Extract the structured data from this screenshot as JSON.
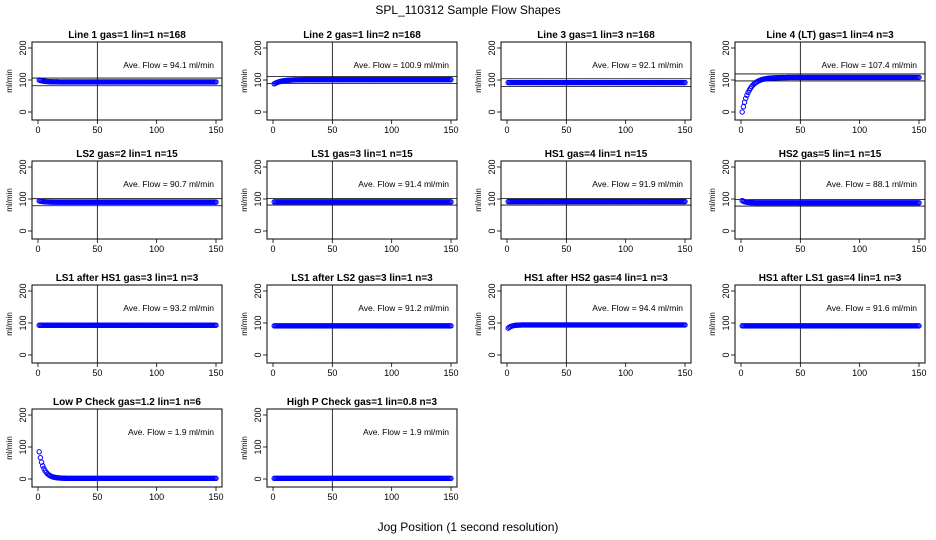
{
  "figure": {
    "title": "SPL_110312  Sample Flow Shapes",
    "xlabel": "Jog Position (1 second resolution)"
  },
  "chart_data": [
    {
      "type": "scatter",
      "title": "Line 1 gas=1 lin=1 n=168",
      "ylabel": "ml/min",
      "xlim": [
        0,
        150
      ],
      "ylim": [
        0,
        200
      ],
      "xticks": [
        0,
        50,
        100,
        150
      ],
      "yticks": [
        0,
        100,
        200
      ],
      "vline": 50,
      "hlines": [
        82,
        106
      ],
      "annotation": "Ave. Flow =  94.1  ml/min",
      "curve": {
        "shape": "decay",
        "start": 100,
        "end": 94,
        "tau": 4
      }
    },
    {
      "type": "scatter",
      "title": "Line 2 gas=1 lin=2 n=168",
      "ylabel": "ml/min",
      "xlim": [
        0,
        150
      ],
      "ylim": [
        0,
        200
      ],
      "xticks": [
        0,
        50,
        100,
        150
      ],
      "yticks": [
        0,
        100,
        200
      ],
      "vline": 50,
      "hlines": [
        89,
        111
      ],
      "annotation": "Ave. Flow =  100.9  ml/min",
      "curve": {
        "shape": "rise",
        "start": 88,
        "end": 101,
        "tau": 6
      }
    },
    {
      "type": "scatter",
      "title": "Line 3 gas=1 lin=3 n=168",
      "ylabel": "ml/min",
      "xlim": [
        0,
        150
      ],
      "ylim": [
        0,
        200
      ],
      "xticks": [
        0,
        50,
        100,
        150
      ],
      "yticks": [
        0,
        100,
        200
      ],
      "vline": 50,
      "hlines": [
        80,
        104
      ],
      "annotation": "Ave. Flow =  92.1  ml/min",
      "curve": {
        "shape": "flat",
        "start": 92,
        "end": 92,
        "tau": 1
      }
    },
    {
      "type": "scatter",
      "title": "Line 4 (LT) gas=1 lin=4 n=3",
      "ylabel": "ml/min",
      "xlim": [
        0,
        150
      ],
      "ylim": [
        0,
        200
      ],
      "xticks": [
        0,
        50,
        100,
        150
      ],
      "yticks": [
        0,
        100,
        200
      ],
      "vline": 50,
      "hlines": [
        97,
        119
      ],
      "annotation": "Ave. Flow =  107.4  ml/min",
      "curve": {
        "shape": "rise",
        "start": 0,
        "end": 108,
        "tau": 6
      }
    },
    {
      "type": "scatter",
      "title": "LS2 gas=2 lin=1 n=15",
      "ylabel": "ml/min",
      "xlim": [
        0,
        150
      ],
      "ylim": [
        0,
        200
      ],
      "xticks": [
        0,
        50,
        100,
        150
      ],
      "yticks": [
        0,
        100,
        200
      ],
      "vline": 50,
      "hlines": [
        79,
        101
      ],
      "annotation": "Ave. Flow =  90.7  ml/min",
      "curve": {
        "shape": "decay",
        "start": 94,
        "end": 90,
        "tau": 4
      }
    },
    {
      "type": "scatter",
      "title": "LS1 gas=3 lin=1 n=15",
      "ylabel": "ml/min",
      "xlim": [
        0,
        150
      ],
      "ylim": [
        0,
        200
      ],
      "xticks": [
        0,
        50,
        100,
        150
      ],
      "yticks": [
        0,
        100,
        200
      ],
      "vline": 50,
      "hlines": [
        81,
        102
      ],
      "annotation": "Ave. Flow =  91.4  ml/min",
      "curve": {
        "shape": "flat",
        "start": 91,
        "end": 91,
        "tau": 1
      }
    },
    {
      "type": "scatter",
      "title": "HS1 gas=4 lin=1 n=15",
      "ylabel": "ml/min",
      "xlim": [
        0,
        150
      ],
      "ylim": [
        0,
        200
      ],
      "xticks": [
        0,
        50,
        100,
        150
      ],
      "yticks": [
        0,
        100,
        200
      ],
      "vline": 50,
      "hlines": [
        81,
        102
      ],
      "annotation": "Ave. Flow =  91.9  ml/min",
      "curve": {
        "shape": "flat",
        "start": 92,
        "end": 92,
        "tau": 1
      }
    },
    {
      "type": "scatter",
      "title": "HS2 gas=5 lin=1 n=15",
      "ylabel": "ml/min",
      "xlim": [
        0,
        150
      ],
      "ylim": [
        0,
        200
      ],
      "xticks": [
        0,
        50,
        100,
        150
      ],
      "yticks": [
        0,
        100,
        200
      ],
      "vline": 50,
      "hlines": [
        78,
        98
      ],
      "annotation": "Ave. Flow =  88.1  ml/min",
      "curve": {
        "shape": "decay",
        "start": 95,
        "end": 88,
        "tau": 3
      }
    },
    {
      "type": "scatter",
      "title": "LS1 after HS1 gas=3 lin=1 n=3",
      "ylabel": "ml/min",
      "xlim": [
        0,
        150
      ],
      "ylim": [
        0,
        200
      ],
      "xticks": [
        0,
        50,
        100,
        150
      ],
      "yticks": [
        0,
        100,
        200
      ],
      "vline": 50,
      "hlines": [],
      "annotation": "Ave. Flow =  93.2  ml/min",
      "curve": {
        "shape": "flat",
        "start": 93,
        "end": 93,
        "tau": 1
      }
    },
    {
      "type": "scatter",
      "title": "LS1 after LS2 gas=3 lin=1 n=3",
      "ylabel": "ml/min",
      "xlim": [
        0,
        150
      ],
      "ylim": [
        0,
        200
      ],
      "xticks": [
        0,
        50,
        100,
        150
      ],
      "yticks": [
        0,
        100,
        200
      ],
      "vline": 50,
      "hlines": [],
      "annotation": "Ave. Flow =  91.2  ml/min",
      "curve": {
        "shape": "flat",
        "start": 91,
        "end": 91,
        "tau": 1
      }
    },
    {
      "type": "scatter",
      "title": "HS1 after HS2 gas=4 lin=1 n=3",
      "ylabel": "ml/min",
      "xlim": [
        0,
        150
      ],
      "ylim": [
        0,
        200
      ],
      "xticks": [
        0,
        50,
        100,
        150
      ],
      "yticks": [
        0,
        100,
        200
      ],
      "vline": 50,
      "hlines": [],
      "annotation": "Ave. Flow =  94.4  ml/min",
      "curve": {
        "shape": "rise",
        "start": 84,
        "end": 94,
        "tau": 3
      }
    },
    {
      "type": "scatter",
      "title": "HS1 after LS1 gas=4 lin=1 n=3",
      "ylabel": "ml/min",
      "xlim": [
        0,
        150
      ],
      "ylim": [
        0,
        200
      ],
      "xticks": [
        0,
        50,
        100,
        150
      ],
      "yticks": [
        0,
        100,
        200
      ],
      "vline": 50,
      "hlines": [],
      "annotation": "Ave. Flow =  91.6  ml/min",
      "curve": {
        "shape": "flat",
        "start": 91,
        "end": 91,
        "tau": 1
      }
    },
    {
      "type": "scatter",
      "title": "Low P Check gas=1.2 lin=1 n=6",
      "ylabel": "ml/min",
      "xlim": [
        0,
        150
      ],
      "ylim": [
        0,
        200
      ],
      "xticks": [
        0,
        50,
        100,
        150
      ],
      "yticks": [
        0,
        100,
        200
      ],
      "vline": 50,
      "hlines": [],
      "annotation": "Ave. Flow =  1.9  ml/min",
      "curve": {
        "shape": "decay",
        "start": 85,
        "end": 2,
        "tau": 4
      }
    },
    {
      "type": "scatter",
      "title": "High P Check gas=1 lin=0.8 n=3",
      "ylabel": "ml/min",
      "xlim": [
        0,
        150
      ],
      "ylim": [
        0,
        200
      ],
      "xticks": [
        0,
        50,
        100,
        150
      ],
      "yticks": [
        0,
        100,
        200
      ],
      "vline": 50,
      "hlines": [],
      "annotation": "Ave. Flow =  1.9  ml/min",
      "curve": {
        "shape": "flat",
        "start": 2,
        "end": 2,
        "tau": 1
      }
    }
  ],
  "colors": {
    "points": "#0000ff",
    "axes": "#000000",
    "background": "#ffffff"
  }
}
